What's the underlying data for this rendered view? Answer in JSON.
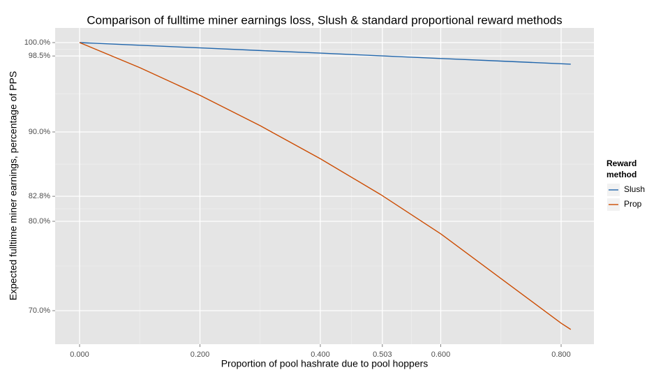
{
  "chart_data": {
    "type": "line",
    "title": "Comparison of fulltime miner earnings loss, Slush & standard proportional reward methods",
    "x_label": "Proportion of pool hashrate due to pool hoppers",
    "y_label": "Expected fulltime miner earnings, percentage of PPS",
    "legend_title": "Reward method",
    "x": [
      0,
      0.1,
      0.2,
      0.3,
      0.4,
      0.5,
      0.6,
      0.7,
      0.8,
      0.816
    ],
    "series": [
      {
        "name": "Slush",
        "color": "#2166ac",
        "values": [
          100,
          99.7,
          99.41,
          99.11,
          98.82,
          98.52,
          98.22,
          97.93,
          97.63,
          97.58
        ]
      },
      {
        "name": "Prop",
        "color": "#cc4c02",
        "values": [
          100,
          97.2,
          94.1,
          90.7,
          87.0,
          83.0,
          78.6,
          73.6,
          68.6,
          67.9
        ]
      }
    ],
    "xlim": [
      -0.0406,
      0.8545
    ],
    "ylim": [
      66.25,
      101.64
    ],
    "xticks": [
      {
        "value": 0,
        "label": "0.000"
      },
      {
        "value": 0.2,
        "label": "0.200"
      },
      {
        "value": 0.4,
        "label": "0.400"
      },
      {
        "value": 0.503,
        "label": "0.503"
      },
      {
        "value": 0.6,
        "label": "0.600"
      },
      {
        "value": 0.8,
        "label": "0.800"
      }
    ],
    "yticks": [
      {
        "value": 70,
        "label": "70.0%"
      },
      {
        "value": 80,
        "label": "80.0%"
      },
      {
        "value": 82.8,
        "label": "82.8%"
      },
      {
        "value": 90,
        "label": "90.0%"
      },
      {
        "value": 98.5,
        "label": "98.5%"
      },
      {
        "value": 100,
        "label": "100.0%"
      }
    ],
    "grid": true,
    "legend": "right"
  }
}
